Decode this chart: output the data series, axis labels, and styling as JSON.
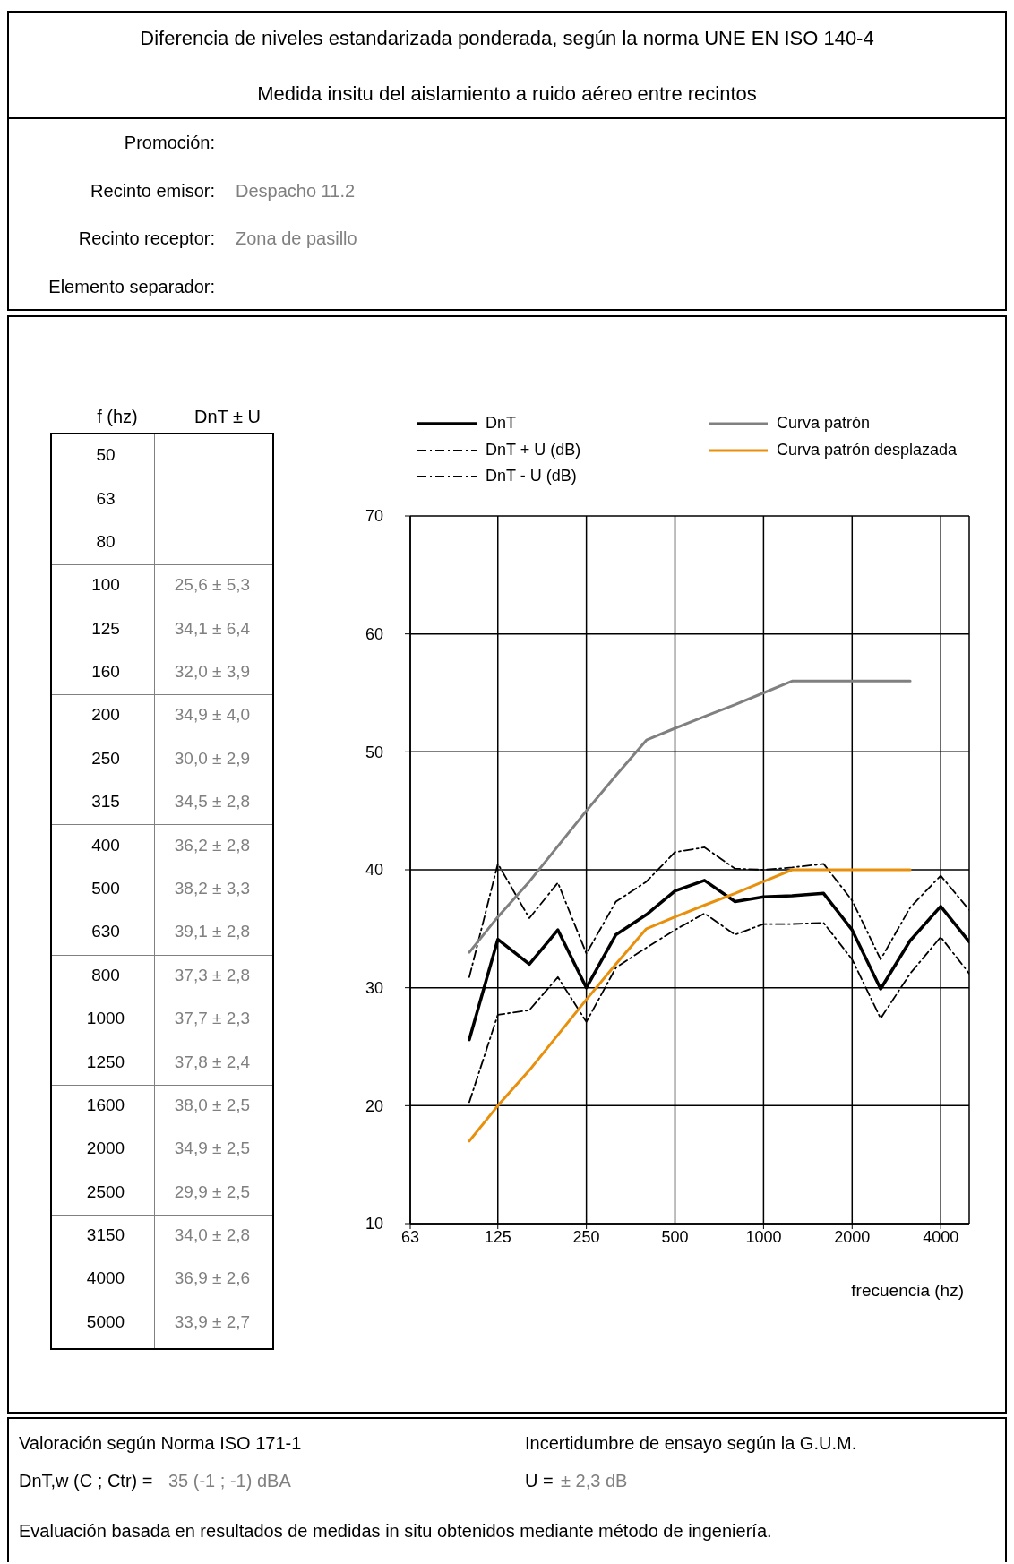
{
  "chart_data": [
    {
      "type": "other",
      "title": "Diferencia de niveles estandarizada ponderada, según la norma UNE EN ISO 140-4",
      "subtitle": "Medida insitu del aislamiento a ruido aéreo entre recintos",
      "annotations": [
        "Promoción:",
        "Recinto emisor:",
        "Despacho 11.2",
        "Recinto receptor:",
        "Zona de pasillo",
        "Elemento separador:",
        "f (hz)",
        "DnT ± U",
        "50",
        "63",
        "80",
        "100",
        "125",
        "160",
        "200",
        "250",
        "315",
        "400",
        "500",
        "630",
        "800",
        "1000",
        "1250",
        "1600",
        "2000",
        "2500",
        "3150",
        "4000",
        "5000",
        "25,6 ± 5,3",
        "34,1 ± 6,4",
        "32,0 ± 3,9",
        "34,9 ± 4,0",
        "30,0 ± 2,9",
        "34,5 ± 2,8",
        "36,2 ± 2,8",
        "38,2 ± 3,3",
        "39,1 ± 2,8",
        "37,3 ± 2,8",
        "37,7 ± 2,3",
        "37,8 ± 2,4",
        "38,0 ± 2,5",
        "34,9 ± 2,5",
        "29,9 ± 2,5",
        "34,0 ± 2,8",
        "36,9 ± 2,6",
        "33,9 ± 2,7"
      ]
    },
    {
      "type": "line",
      "xlabel": "frecuencia (hz)",
      "log": "x",
      "xlim": [
        63,
        5000
      ],
      "xticks": [
        63,
        125,
        250,
        500,
        1000,
        2000,
        4000
      ],
      "ylim": [
        10,
        70
      ],
      "yticks": [
        10,
        20,
        30,
        40,
        50,
        60,
        70
      ],
      "grid": true,
      "legend": "top",
      "marker": "none",
      "series": [
        {
          "name": "DnT",
          "color": "#000000",
          "line_style": "solid",
          "x": [
            100,
            125,
            160,
            200,
            250,
            315,
            400,
            500,
            630,
            800,
            1000,
            1250,
            1600,
            2000,
            2500,
            3150,
            4000,
            5000
          ],
          "values": [
            25.6,
            34.1,
            32.0,
            34.9,
            30.0,
            34.5,
            36.2,
            38.2,
            39.1,
            37.3,
            37.7,
            37.8,
            38.0,
            34.9,
            29.9,
            34.0,
            36.9,
            33.9
          ]
        },
        {
          "name": "DnT + U (dB)",
          "color": "#000000",
          "line_style": "dashed",
          "x": [
            100,
            125,
            160,
            200,
            250,
            315,
            400,
            500,
            630,
            800,
            1000,
            1250,
            1600,
            2000,
            2500,
            3150,
            4000,
            5000
          ],
          "values": [
            30.9,
            40.5,
            35.9,
            38.9,
            32.9,
            37.3,
            39.0,
            41.5,
            41.9,
            40.1,
            40.0,
            40.2,
            40.5,
            37.4,
            32.4,
            36.8,
            39.5,
            36.6
          ]
        },
        {
          "name": "DnT - U (dB)",
          "color": "#000000",
          "line_style": "dashed",
          "x": [
            100,
            125,
            160,
            200,
            250,
            315,
            400,
            500,
            630,
            800,
            1000,
            1250,
            1600,
            2000,
            2500,
            3150,
            4000,
            5000
          ],
          "values": [
            20.3,
            27.7,
            28.1,
            30.9,
            27.1,
            31.7,
            33.4,
            34.9,
            36.3,
            34.5,
            35.4,
            35.4,
            35.5,
            32.4,
            27.4,
            31.2,
            34.3,
            31.2
          ]
        },
        {
          "name": "Curva patrón",
          "color": "#808080",
          "line_style": "solid",
          "x": [
            100,
            125,
            160,
            200,
            250,
            315,
            400,
            500,
            630,
            800,
            1000,
            1250,
            1600,
            2000,
            2500,
            3150
          ],
          "values": [
            33,
            36,
            39,
            42,
            45,
            48,
            51,
            52,
            53,
            54,
            55,
            56,
            56,
            56,
            56,
            56
          ]
        },
        {
          "name": "Curva patrón desplazada",
          "color": "#e8900c",
          "line_style": "solid",
          "x": [
            100,
            125,
            160,
            200,
            250,
            315,
            400,
            500,
            630,
            800,
            1000,
            1250,
            1600,
            2000,
            2500,
            3150
          ],
          "values": [
            17,
            20,
            23,
            26,
            29,
            32,
            35,
            36,
            37,
            38,
            39,
            40,
            40,
            40,
            40,
            40
          ]
        }
      ],
      "annotations": [
        "Valoración según Norma ISO 171-1",
        "Incertidumbre de ensayo según la G.U.M.",
        "DnT,w (C ; Ctr) = ",
        "35 (-1 ; -1) dBA",
        "U = ",
        "± 2,3 dB",
        "Evaluación basada en resultados de medidas in situ obtenidos mediante método de ingeniería."
      ]
    }
  ]
}
